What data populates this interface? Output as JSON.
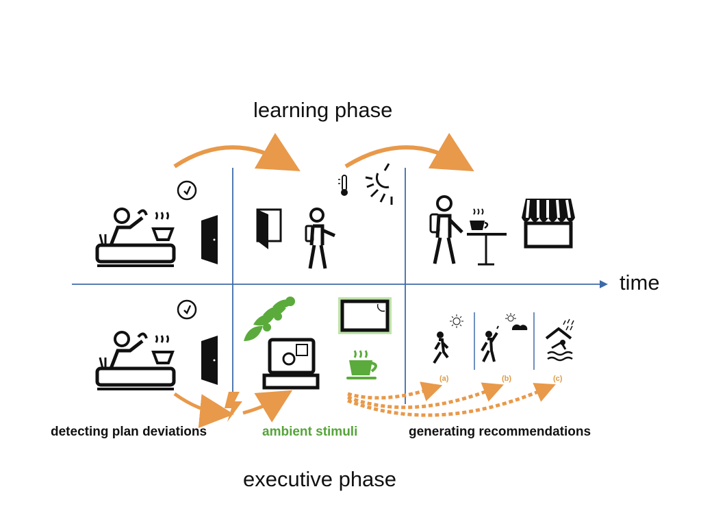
{
  "titles": {
    "learning": "learning phase",
    "executive": "executive phase",
    "axis": "time"
  },
  "labels": {
    "detecting": "detecting plan deviations",
    "ambient": "ambient stimuli",
    "generating": "generating recommendations"
  },
  "recommendations": [
    "(a)",
    "(b)",
    "(c)"
  ],
  "colors": {
    "arrow": "#e8994a",
    "axis": "#3d6aa8",
    "ambient": "#55a43a",
    "ink": "#111111"
  }
}
